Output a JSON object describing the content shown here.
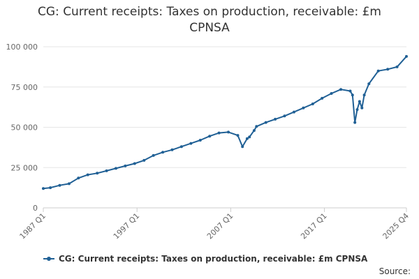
{
  "chart_data": {
    "type": "line",
    "title": "CG: Current receipts: Taxes on production, receivable: £m CPNSA",
    "xlabel": "",
    "ylabel": "",
    "ylim": [
      0,
      100000
    ],
    "yticks": [
      0,
      25000,
      50000,
      75000,
      100000
    ],
    "ytick_labels": [
      "0",
      "25 000",
      "50 000",
      "75 000",
      "100 000"
    ],
    "xticks": [
      "1987 Q1",
      "1997 Q1",
      "2007 Q1",
      "2017 Q1",
      "2025 Q4"
    ],
    "grid": true,
    "legend_position": "bottom",
    "color": "#206095",
    "series": [
      {
        "name": "CG: Current receipts: Taxes on production, receivable: £m CPNSA",
        "x": [
          "1987 Q1",
          "1987 Q4",
          "1988 Q4",
          "1989 Q4",
          "1990 Q4",
          "1991 Q4",
          "1992 Q4",
          "1993 Q4",
          "1994 Q4",
          "1995 Q4",
          "1996 Q4",
          "1997 Q4",
          "1998 Q4",
          "1999 Q4",
          "2000 Q4",
          "2001 Q4",
          "2002 Q4",
          "2003 Q4",
          "2004 Q4",
          "2005 Q4",
          "2006 Q4",
          "2007 Q4",
          "2008 Q2",
          "2008 Q4",
          "2009 Q1",
          "2009 Q3",
          "2009 Q4",
          "2010 Q4",
          "2011 Q4",
          "2012 Q4",
          "2013 Q4",
          "2014 Q4",
          "2015 Q4",
          "2016 Q4",
          "2017 Q4",
          "2018 Q4",
          "2019 Q4",
          "2020 Q1",
          "2020 Q2",
          "2020 Q3",
          "2020 Q4",
          "2021 Q1",
          "2021 Q2",
          "2021 Q4",
          "2022 Q4",
          "2023 Q4",
          "2024 Q4",
          "2025 Q4"
        ],
        "values": [
          12000,
          12500,
          14000,
          15000,
          18500,
          20500,
          21500,
          23000,
          24500,
          26000,
          27500,
          29500,
          32500,
          34500,
          36000,
          38000,
          40000,
          42000,
          44500,
          46500,
          47000,
          45000,
          38000,
          43000,
          44000,
          48000,
          50500,
          53000,
          55000,
          57000,
          59500,
          62000,
          64500,
          68000,
          71000,
          73500,
          72500,
          70000,
          53000,
          61000,
          66000,
          62000,
          70000,
          77000,
          85000,
          86000,
          87500,
          94000
        ]
      }
    ]
  },
  "legend": {
    "label": "CG: Current receipts: Taxes on production, receivable: £m CPNSA"
  },
  "source": {
    "label": "Source:"
  }
}
